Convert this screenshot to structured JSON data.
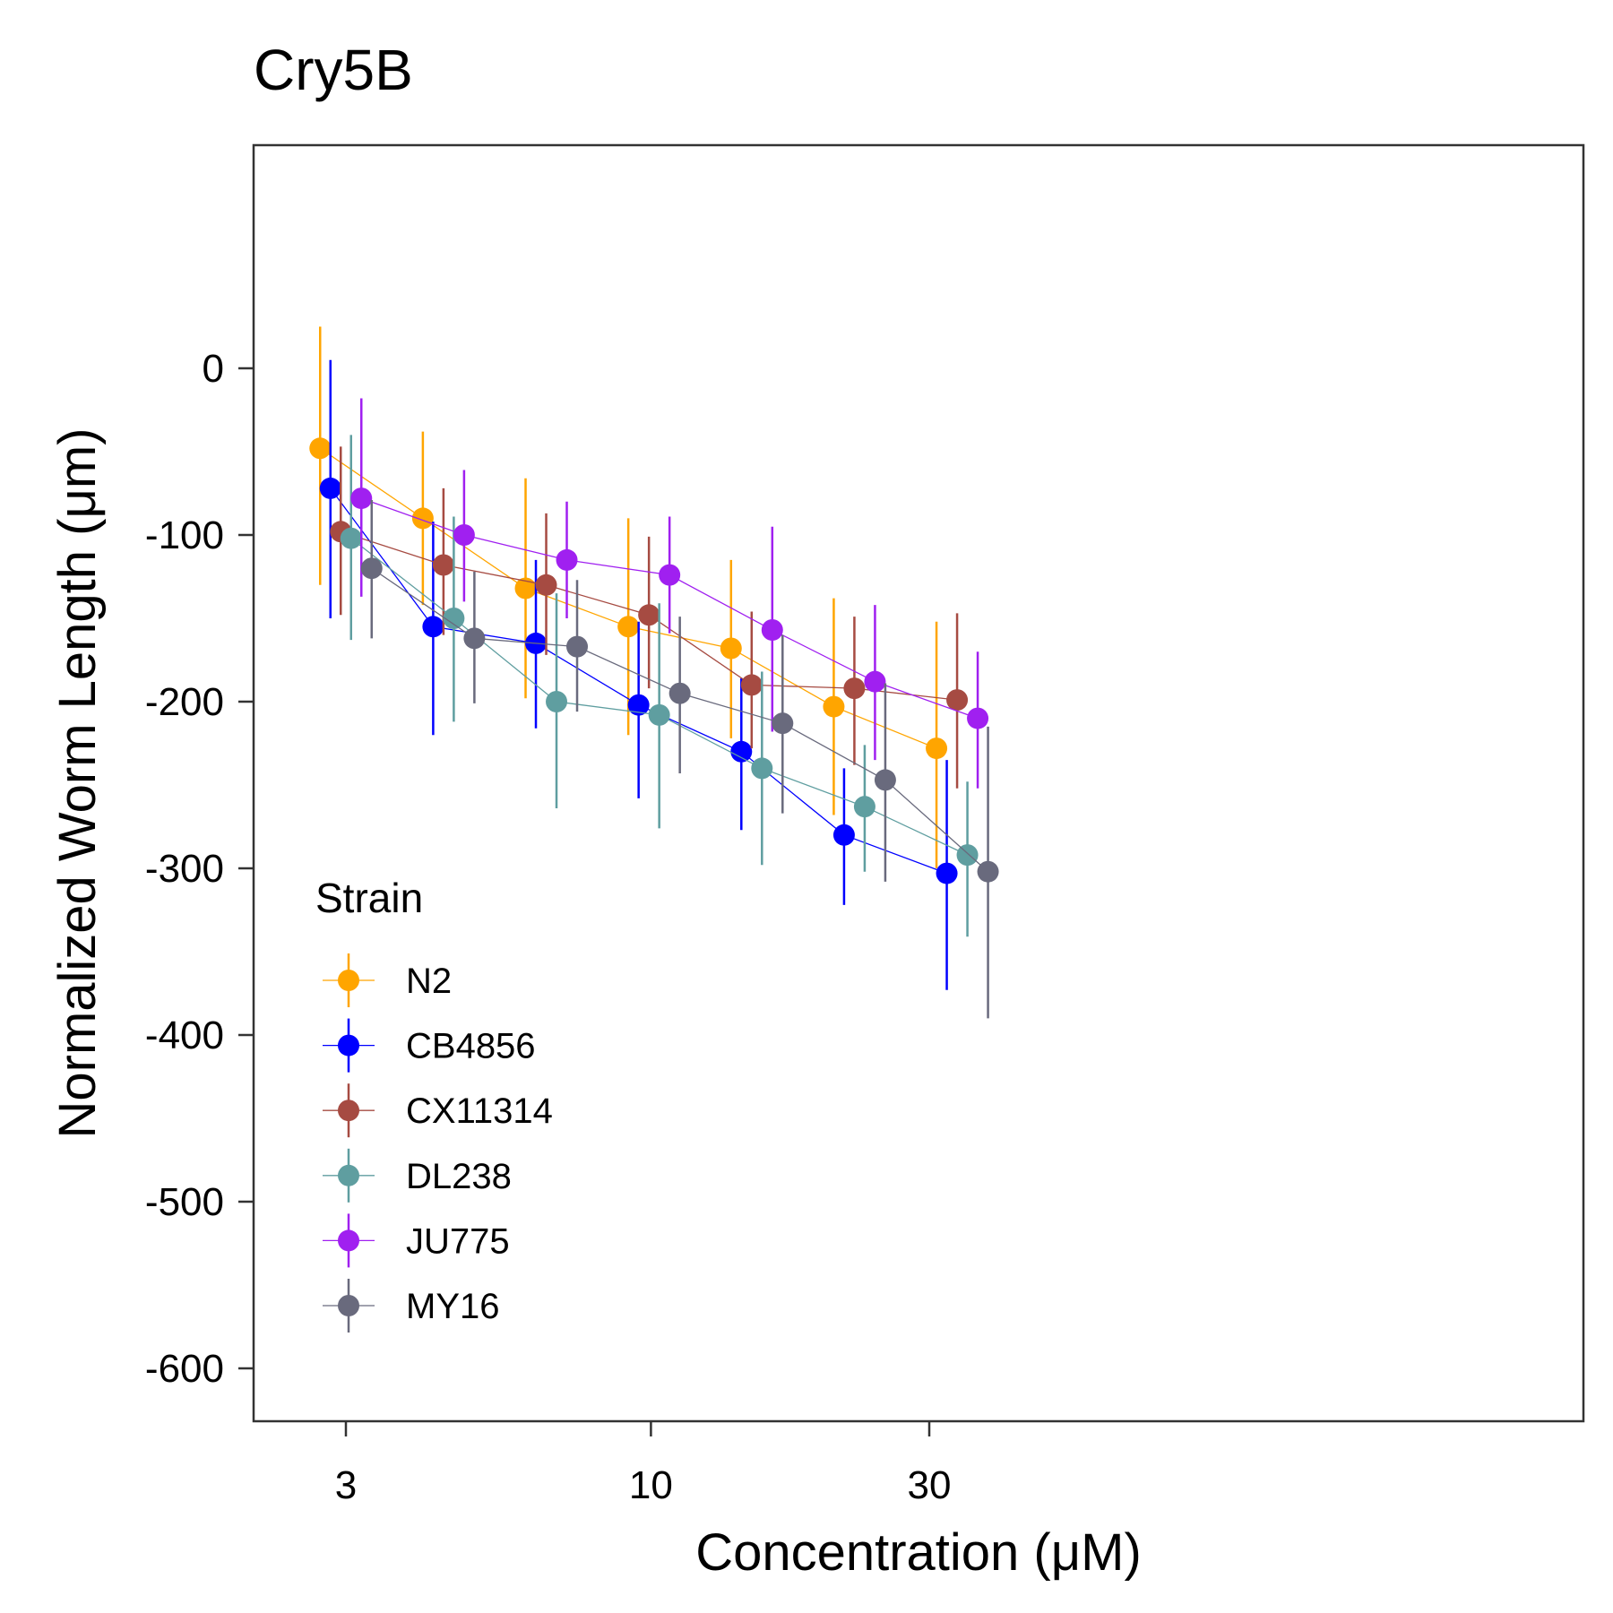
{
  "chart_data": {
    "type": "line",
    "title": "Cry5B",
    "xlabel": "Concentration (μM)",
    "ylabel": "Normalized Worm Length (μm)",
    "x_scale": "log",
    "x_ticks": [
      3,
      10,
      30
    ],
    "x_tick_labels": [
      "3",
      "10",
      "30"
    ],
    "y_ticks": [
      0,
      -100,
      -200,
      -300,
      -400,
      -500,
      -600
    ],
    "y_tick_labels": [
      "0",
      "-100",
      "-200",
      "-300",
      "-400",
      "-500",
      "-600"
    ],
    "grid": false,
    "legend": {
      "title": "Strain",
      "position": "inside-bottom-left"
    },
    "x": [
      3,
      4.5,
      6.75,
      10.125,
      15.1875,
      22.78125,
      34.171875
    ],
    "series": [
      {
        "name": "N2",
        "color": "#FFA500",
        "values": [
          -48,
          -90,
          -132,
          -155,
          -168,
          -203,
          -228
        ],
        "lower": [
          -130,
          -142,
          -198,
          -220,
          -222,
          -268,
          -300
        ],
        "upper": [
          25,
          -38,
          -66,
          -90,
          -115,
          -138,
          -152
        ]
      },
      {
        "name": "CB4856",
        "color": "#0000FF",
        "values": [
          -72,
          -155,
          -165,
          -202,
          -230,
          -280,
          -303
        ],
        "lower": [
          -150,
          -220,
          -216,
          -258,
          -277,
          -322,
          -373
        ],
        "upper": [
          5,
          -92,
          -115,
          -152,
          -186,
          -240,
          -235
        ]
      },
      {
        "name": "CX11314",
        "color": "#A64B42",
        "values": [
          -98,
          -118,
          -130,
          -148,
          -190,
          -192,
          -199
        ],
        "lower": [
          -148,
          -160,
          -172,
          -192,
          -228,
          -238,
          -252
        ],
        "upper": [
          -47,
          -72,
          -87,
          -101,
          -146,
          -149,
          -147
        ]
      },
      {
        "name": "DL238",
        "color": "#5F9EA0",
        "values": [
          -102,
          -150,
          -200,
          -208,
          -240,
          -263,
          -292
        ],
        "lower": [
          -163,
          -212,
          -264,
          -276,
          -298,
          -302,
          -341
        ],
        "upper": [
          -40,
          -89,
          -135,
          -141,
          -182,
          -226,
          -248
        ]
      },
      {
        "name": "JU775",
        "color": "#A020F0",
        "values": [
          -78,
          -100,
          -115,
          -124,
          -157,
          -188,
          -210
        ],
        "lower": [
          -137,
          -140,
          -150,
          -159,
          -218,
          -235,
          -252
        ],
        "upper": [
          -18,
          -61,
          -80,
          -89,
          -95,
          -142,
          -170
        ]
      },
      {
        "name": "MY16",
        "color": "#696A7D",
        "values": [
          -120,
          -162,
          -167,
          -195,
          -213,
          -247,
          -302
        ],
        "lower": [
          -162,
          -201,
          -206,
          -243,
          -267,
          -308,
          -390
        ],
        "upper": [
          -79,
          -122,
          -127,
          -149,
          -160,
          -189,
          -215
        ]
      }
    ]
  }
}
